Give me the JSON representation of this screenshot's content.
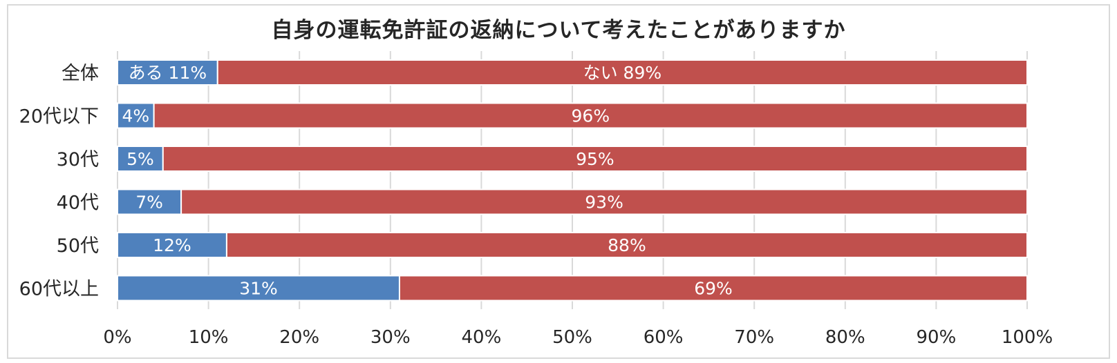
{
  "chart_data": {
    "type": "bar",
    "orientation": "horizontal",
    "stacked": true,
    "title": "自身の運転免許証の返納について考えたことがありますか",
    "categories": [
      "全体",
      "20代以下",
      "30代",
      "40代",
      "50代",
      "60代以上"
    ],
    "series": [
      {
        "name": "ある",
        "color": "#4f81bd",
        "values": [
          11,
          4,
          5,
          7,
          12,
          31
        ],
        "labels": [
          "ある 11%",
          "4%",
          "5%",
          "7%",
          "12%",
          "31%"
        ]
      },
      {
        "name": "ない",
        "color": "#c0504d",
        "values": [
          89,
          96,
          95,
          93,
          88,
          69
        ],
        "labels": [
          "ない 89%",
          "96%",
          "95%",
          "93%",
          "88%",
          "69%"
        ]
      }
    ],
    "xlim": [
      0,
      100
    ],
    "x_ticks": [
      "0%",
      "10%",
      "20%",
      "30%",
      "40%",
      "50%",
      "60%",
      "70%",
      "80%",
      "90%",
      "100%"
    ],
    "grid": true,
    "gridline_color": "#d9d9d9"
  }
}
